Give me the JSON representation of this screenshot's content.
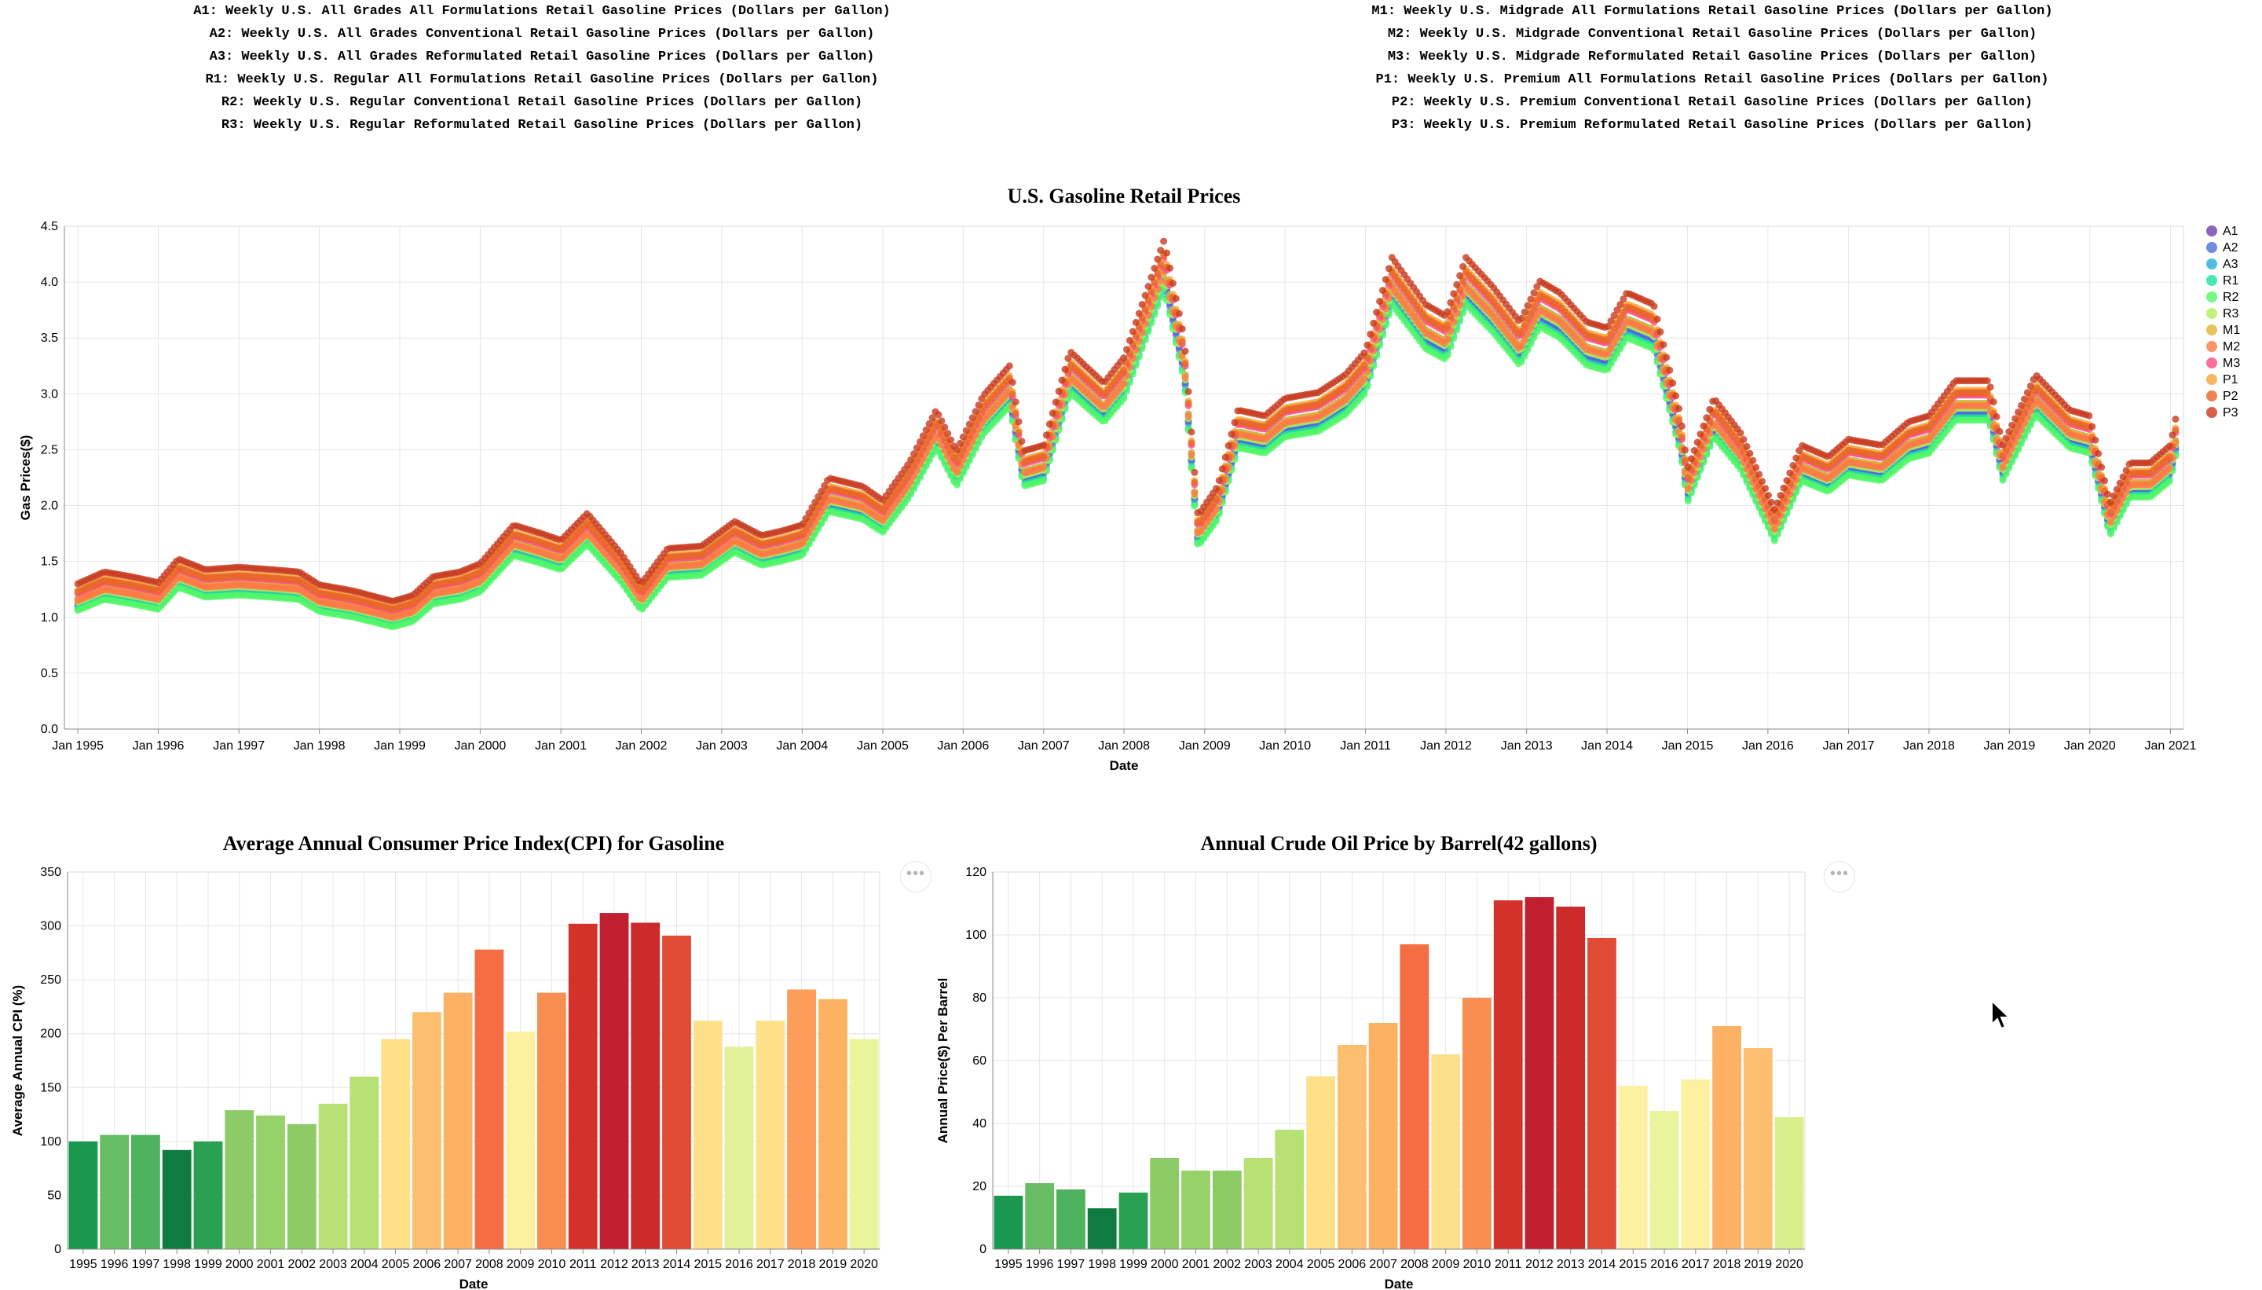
{
  "series_descriptions_left": [
    "A1: Weekly U.S. All Grades All Formulations Retail Gasoline Prices (Dollars per Gallon)",
    "A2: Weekly U.S. All Grades Conventional Retail Gasoline Prices (Dollars per Gallon)",
    "A3: Weekly U.S. All Grades Reformulated Retail Gasoline Prices (Dollars per Gallon)",
    "R1: Weekly U.S. Regular All Formulations Retail Gasoline Prices (Dollars per Gallon)",
    "R2: Weekly U.S. Regular Conventional Retail Gasoline Prices (Dollars per Gallon)",
    "R3: Weekly U.S. Regular Reformulated Retail Gasoline Prices (Dollars per Gallon)"
  ],
  "series_descriptions_right": [
    "M1: Weekly U.S. Midgrade All Formulations Retail Gasoline Prices (Dollars per Gallon)",
    "M2: Weekly U.S. Midgrade Conventional Retail Gasoline Prices (Dollars per Gallon)",
    "M3: Weekly U.S. Midgrade Reformulated Retail Gasoline Prices (Dollars per Gallon)",
    "P1: Weekly U.S. Premium All Formulations Retail Gasoline Prices (Dollars per Gallon)",
    "P2: Weekly U.S. Premium Conventional Retail Gasoline Prices (Dollars per Gallon)",
    "P3: Weekly U.S. Premium Reformulated Retail Gasoline Prices (Dollars per Gallon)"
  ],
  "menu_button_label": "•••",
  "chart_data": [
    {
      "type": "scatter",
      "title": "U.S. Gasoline Retail Prices",
      "xlabel": "Date",
      "ylabel": "Gas Prices($)",
      "ylim": [
        0,
        4.5
      ],
      "xlim": [
        "1994-11-01",
        "2021-03-01"
      ],
      "yticks": [
        0.0,
        0.5,
        1.0,
        1.5,
        2.0,
        2.5,
        3.0,
        3.5,
        4.0,
        4.5
      ],
      "ytick_labels": [
        "0.0",
        "0.5",
        "1.0",
        "1.5",
        "2.0",
        "2.5",
        "3.0",
        "3.5",
        "4.0",
        "4.5"
      ],
      "xticks": [
        "1995-01-01",
        "1996-01-01",
        "1997-01-01",
        "1998-01-01",
        "1999-01-01",
        "2000-01-01",
        "2001-01-01",
        "2002-01-01",
        "2003-01-01",
        "2004-01-01",
        "2005-01-01",
        "2006-01-01",
        "2007-01-01",
        "2008-01-01",
        "2009-01-01",
        "2010-01-01",
        "2011-01-01",
        "2012-01-01",
        "2013-01-01",
        "2014-01-01",
        "2015-01-01",
        "2016-01-01",
        "2017-01-01",
        "2018-01-01",
        "2019-01-01",
        "2020-01-01",
        "2021-01-01"
      ],
      "xtick_labels": [
        "Jan 1995",
        "Jan 1996",
        "Jan 1997",
        "Jan 1998",
        "Jan 1999",
        "Jan 2000",
        "Jan 2001",
        "Jan 2002",
        "Jan 2003",
        "Jan 2004",
        "Jan 2005",
        "Jan 2006",
        "Jan 2007",
        "Jan 2008",
        "Jan 2009",
        "Jan 2010",
        "Jan 2011",
        "Jan 2012",
        "Jan 2013",
        "Jan 2014",
        "Jan 2015",
        "Jan 2016",
        "Jan 2017",
        "Jan 2018",
        "Jan 2019",
        "Jan 2020",
        "Jan 2021"
      ],
      "grid": true,
      "legend_position": "right",
      "legend": [
        {
          "name": "A1",
          "color": "#6e40aa"
        },
        {
          "name": "A2",
          "color": "#4c6edb"
        },
        {
          "name": "A3",
          "color": "#23abd8"
        },
        {
          "name": "R1",
          "color": "#1ddfa3"
        },
        {
          "name": "R2",
          "color": "#52f667"
        },
        {
          "name": "R3",
          "color": "#aff05b"
        },
        {
          "name": "M1",
          "color": "#e2b72f"
        },
        {
          "name": "M2",
          "color": "#ff7847"
        },
        {
          "name": "M3",
          "color": "#fe4b83"
        },
        {
          "name": "P1",
          "color": "#f7a637"
        },
        {
          "name": "P2",
          "color": "#e8652b"
        },
        {
          "name": "P3",
          "color": "#c8391e"
        }
      ],
      "series_offsets": {
        "A1": 0.0,
        "A2": -0.02,
        "A3": 0.06,
        "R1": -0.06,
        "R2": -0.08,
        "R3": 0.02,
        "M1": 0.06,
        "M2": 0.04,
        "M3": 0.13,
        "P1": 0.17,
        "P2": 0.15,
        "P3": 0.25
      },
      "x": [
        "1995-01",
        "1995-05",
        "1995-09",
        "1996-01",
        "1996-04",
        "1996-08",
        "1997-01",
        "1997-06",
        "1997-10",
        "1998-01",
        "1998-06",
        "1998-12",
        "1999-03",
        "1999-06",
        "1999-10",
        "2000-01",
        "2000-06",
        "2000-10",
        "2001-01",
        "2001-05",
        "2001-10",
        "2002-01",
        "2002-05",
        "2002-10",
        "2003-03",
        "2003-07",
        "2003-10",
        "2004-01",
        "2004-05",
        "2004-10",
        "2005-01",
        "2005-05",
        "2005-09",
        "2005-12",
        "2006-04",
        "2006-08",
        "2006-10",
        "2007-01",
        "2007-05",
        "2007-10",
        "2008-01",
        "2008-07",
        "2008-10",
        "2008-12",
        "2009-03",
        "2009-06",
        "2009-10",
        "2010-01",
        "2010-06",
        "2010-10",
        "2011-01",
        "2011-05",
        "2011-10",
        "2012-01",
        "2012-04",
        "2012-08",
        "2012-12",
        "2013-03",
        "2013-06",
        "2013-10",
        "2014-01",
        "2014-04",
        "2014-08",
        "2014-12",
        "2015-01",
        "2015-05",
        "2015-09",
        "2016-02",
        "2016-06",
        "2016-10",
        "2017-01",
        "2017-06",
        "2017-10",
        "2018-01",
        "2018-05",
        "2018-10",
        "2018-12",
        "2019-05",
        "2019-10",
        "2020-01",
        "2020-04",
        "2020-07",
        "2020-10",
        "2021-01",
        "2021-02"
      ],
      "y": [
        1.12,
        1.22,
        1.18,
        1.13,
        1.33,
        1.24,
        1.26,
        1.24,
        1.22,
        1.11,
        1.06,
        0.97,
        1.02,
        1.18,
        1.22,
        1.29,
        1.62,
        1.55,
        1.49,
        1.72,
        1.38,
        1.12,
        1.42,
        1.44,
        1.65,
        1.53,
        1.57,
        1.62,
        2.02,
        1.95,
        1.83,
        2.15,
        2.6,
        2.25,
        2.72,
        2.98,
        2.25,
        2.3,
        3.1,
        2.83,
        3.05,
        4.05,
        3.2,
        1.7,
        1.95,
        2.6,
        2.55,
        2.7,
        2.75,
        2.9,
        3.1,
        3.9,
        3.5,
        3.4,
        3.9,
        3.65,
        3.35,
        3.7,
        3.6,
        3.35,
        3.3,
        3.6,
        3.5,
        2.55,
        2.1,
        2.7,
        2.4,
        1.75,
        2.3,
        2.2,
        2.35,
        2.3,
        2.5,
        2.55,
        2.85,
        2.85,
        2.3,
        2.9,
        2.6,
        2.55,
        1.8,
        2.15,
        2.15,
        2.3,
        2.6
      ]
    },
    {
      "type": "bar",
      "title": "Average Annual Consumer Price Index(CPI) for Gasoline",
      "xlabel": "Date",
      "ylabel": "Average Annual CPI (%)",
      "ylim": [
        0,
        350
      ],
      "yticks": [
        0,
        50,
        100,
        150,
        200,
        250,
        300,
        350
      ],
      "ytick_labels": [
        "0",
        "50",
        "100",
        "150",
        "200",
        "250",
        "300",
        "350"
      ],
      "grid": true,
      "categories": [
        "1995",
        "1996",
        "1997",
        "1998",
        "1999",
        "2000",
        "2001",
        "2002",
        "2003",
        "2004",
        "2005",
        "2006",
        "2007",
        "2008",
        "2009",
        "2010",
        "2011",
        "2012",
        "2013",
        "2014",
        "2015",
        "2016",
        "2017",
        "2018",
        "2019",
        "2020"
      ],
      "values": [
        100,
        106,
        106,
        92,
        100,
        129,
        124,
        116,
        135,
        160,
        195,
        220,
        238,
        278,
        202,
        238,
        302,
        312,
        303,
        291,
        212,
        188,
        212,
        241,
        232,
        195
      ],
      "colors": [
        "#1a9850",
        "#66bd63",
        "#4eb15d",
        "#107b40",
        "#2aa052",
        "#8ccb66",
        "#96d268",
        "#8ccb66",
        "#b7e075",
        "#b7e075",
        "#fee08b",
        "#fdbf6f",
        "#fdb163",
        "#f46d43",
        "#fdf0a0",
        "#f98e52",
        "#d3322b",
        "#bf1f2e",
        "#cd2b2b",
        "#e04b36",
        "#fee08b",
        "#e1f19c",
        "#fee08b",
        "#fc9d59",
        "#fdb163",
        "#e8f59a"
      ]
    },
    {
      "type": "bar",
      "title": "Annual Crude Oil Price by Barrel(42 gallons)",
      "xlabel": "Date",
      "ylabel": "Annual Price($) Per Barrel",
      "ylim": [
        0,
        120
      ],
      "yticks": [
        0,
        20,
        40,
        60,
        80,
        100,
        120
      ],
      "ytick_labels": [
        "0",
        "20",
        "40",
        "60",
        "80",
        "100",
        "120"
      ],
      "grid": true,
      "categories": [
        "1995",
        "1996",
        "1997",
        "1998",
        "1999",
        "2000",
        "2001",
        "2002",
        "2003",
        "2004",
        "2005",
        "2006",
        "2007",
        "2008",
        "2009",
        "2010",
        "2011",
        "2012",
        "2013",
        "2014",
        "2015",
        "2016",
        "2017",
        "2018",
        "2019",
        "2020"
      ],
      "values": [
        17,
        21,
        19,
        13,
        18,
        29,
        25,
        25,
        29,
        38,
        55,
        65,
        72,
        97,
        62,
        80,
        111,
        112,
        109,
        99,
        52,
        44,
        54,
        71,
        64,
        42
      ],
      "colors": [
        "#1a9850",
        "#66bd63",
        "#4eb15d",
        "#107b40",
        "#2aa052",
        "#8ccb66",
        "#96d268",
        "#8ccb66",
        "#b7e075",
        "#b7e075",
        "#fee08b",
        "#fdbf6f",
        "#fdb163",
        "#f46d43",
        "#fde08b",
        "#f98e52",
        "#d3322b",
        "#bf1f2e",
        "#cd2b2b",
        "#e04b36",
        "#fdf0a0",
        "#e8f59a",
        "#fdf0a0",
        "#fdb163",
        "#fdbf6f",
        "#d9ef8b"
      ]
    }
  ]
}
